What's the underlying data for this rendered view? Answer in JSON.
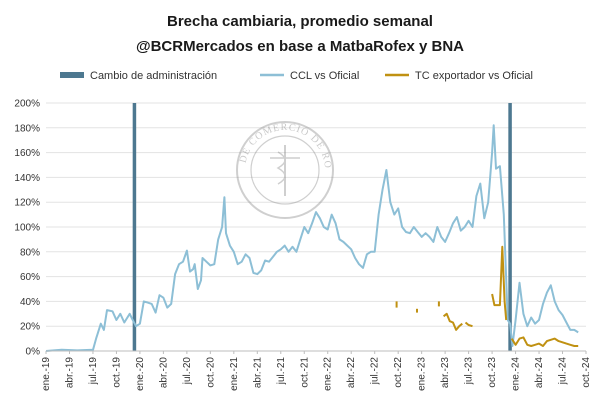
{
  "chart_data": {
    "type": "line",
    "title": "Brecha cambiaria, promedio semanal",
    "subtitle": "@BCRMercados en base a MatbaRofex y BNA",
    "xlabel": "",
    "ylabel": "",
    "ylim": [
      0,
      200
    ],
    "yticks": [
      0,
      20,
      40,
      60,
      80,
      100,
      120,
      140,
      160,
      180,
      200
    ],
    "ytick_labels": [
      "0%",
      "20%",
      "40%",
      "60%",
      "80%",
      "100%",
      "120%",
      "140%",
      "160%",
      "180%",
      "200%"
    ],
    "xticks": [
      "ene.-19",
      "abr.-19",
      "jul.-19",
      "oct.-19",
      "ene.-20",
      "abr.-20",
      "jul.-20",
      "oct.-20",
      "ene.-21",
      "abr.-21",
      "jul.-21",
      "oct.-21",
      "ene.-22",
      "abr.-22",
      "jul.-22",
      "oct.-22",
      "ene.-23",
      "abr.-23",
      "jul.-23",
      "oct.-23",
      "ene.-24",
      "abr.-24",
      "jul.-24",
      "oct.-24"
    ],
    "x_unit": "months since ene.-19",
    "grid": true,
    "legend_position": "top",
    "colors": {
      "ccl": "#8dbfd6",
      "exportador": "#c09112",
      "cambio": "#4d7890"
    },
    "legend": [
      {
        "label": "Cambio de administración",
        "key": "cambio",
        "style": "bar"
      },
      {
        "label": "CCL vs Oficial",
        "key": "ccl",
        "style": "line"
      },
      {
        "label": "TC exportador vs Oficial",
        "key": "exportador",
        "style": "line"
      }
    ],
    "vertical_markers": [
      {
        "name": "Cambio de administración",
        "x": 11.3
      },
      {
        "name": "Cambio de administración",
        "x": 59.3
      }
    ],
    "series": [
      {
        "name": "CCL vs Oficial",
        "key": "ccl",
        "points": [
          [
            0,
            0
          ],
          [
            2,
            1
          ],
          [
            4,
            0.5
          ],
          [
            6,
            1
          ],
          [
            6.4,
            10
          ],
          [
            6.6,
            14
          ],
          [
            7,
            22
          ],
          [
            7.4,
            17
          ],
          [
            7.8,
            33
          ],
          [
            8.5,
            32
          ],
          [
            9,
            25
          ],
          [
            9.5,
            30
          ],
          [
            10,
            23
          ],
          [
            10.7,
            30
          ],
          [
            11,
            26
          ],
          [
            11.5,
            20
          ],
          [
            12,
            22
          ],
          [
            12.5,
            40
          ],
          [
            13,
            39
          ],
          [
            13.5,
            38
          ],
          [
            14,
            31
          ],
          [
            14.5,
            45
          ],
          [
            15,
            43
          ],
          [
            15.5,
            35
          ],
          [
            16,
            38
          ],
          [
            16.5,
            62
          ],
          [
            17,
            70
          ],
          [
            17.5,
            72
          ],
          [
            18,
            81
          ],
          [
            18.4,
            64
          ],
          [
            18.8,
            66
          ],
          [
            19,
            70
          ],
          [
            19.4,
            50
          ],
          [
            19.8,
            57
          ],
          [
            20,
            75
          ],
          [
            20.5,
            72
          ],
          [
            21,
            69
          ],
          [
            21.5,
            70
          ],
          [
            22,
            90
          ],
          [
            22.5,
            100
          ],
          [
            22.8,
            124
          ],
          [
            23,
            95
          ],
          [
            23.5,
            85
          ],
          [
            24,
            80
          ],
          [
            24.5,
            70
          ],
          [
            25,
            72
          ],
          [
            25.5,
            78
          ],
          [
            26,
            75
          ],
          [
            26.5,
            63
          ],
          [
            27,
            62
          ],
          [
            27.5,
            65
          ],
          [
            28,
            73
          ],
          [
            28.5,
            72
          ],
          [
            29,
            76
          ],
          [
            29.5,
            80
          ],
          [
            30,
            82
          ],
          [
            30.5,
            85
          ],
          [
            31,
            80
          ],
          [
            31.5,
            84
          ],
          [
            32,
            80
          ],
          [
            32.5,
            90
          ],
          [
            33,
            100
          ],
          [
            33.5,
            95
          ],
          [
            34,
            103
          ],
          [
            34.5,
            112
          ],
          [
            35,
            107
          ],
          [
            35.5,
            100
          ],
          [
            36,
            98
          ],
          [
            36.5,
            110
          ],
          [
            37,
            103
          ],
          [
            37.5,
            90
          ],
          [
            38,
            88
          ],
          [
            38.5,
            85
          ],
          [
            39,
            82
          ],
          [
            39.5,
            75
          ],
          [
            40,
            70
          ],
          [
            40.5,
            67
          ],
          [
            41,
            78
          ],
          [
            41.5,
            80
          ],
          [
            42,
            80
          ],
          [
            42.5,
            110
          ],
          [
            43,
            130
          ],
          [
            43.5,
            146
          ],
          [
            44,
            120
          ],
          [
            44.5,
            110
          ],
          [
            45,
            115
          ],
          [
            45.5,
            100
          ],
          [
            46,
            96
          ],
          [
            46.5,
            95
          ],
          [
            47,
            100
          ],
          [
            47.5,
            96
          ],
          [
            48,
            92
          ],
          [
            48.5,
            95
          ],
          [
            49,
            92
          ],
          [
            49.5,
            88
          ],
          [
            50,
            100
          ],
          [
            50.5,
            92
          ],
          [
            51,
            88
          ],
          [
            51.5,
            95
          ],
          [
            52,
            103
          ],
          [
            52.5,
            108
          ],
          [
            53,
            97
          ],
          [
            53.5,
            100
          ],
          [
            54,
            105
          ],
          [
            54.5,
            100
          ],
          [
            55,
            125
          ],
          [
            55.5,
            135
          ],
          [
            56,
            107
          ],
          [
            56.5,
            120
          ],
          [
            57,
            160
          ],
          [
            57.2,
            182
          ],
          [
            57.5,
            147
          ],
          [
            58,
            149
          ],
          [
            58.5,
            110
          ],
          [
            59,
            25
          ],
          [
            59.3,
            22
          ],
          [
            59.6,
            4
          ],
          [
            60,
            25
          ],
          [
            60.5,
            55
          ],
          [
            61,
            30
          ],
          [
            61.5,
            20
          ],
          [
            62,
            27
          ],
          [
            62.5,
            22
          ],
          [
            63,
            25
          ],
          [
            63.5,
            38
          ],
          [
            64,
            47
          ],
          [
            64.5,
            53
          ],
          [
            65,
            40
          ],
          [
            65.5,
            33
          ],
          [
            66,
            29
          ],
          [
            66.5,
            23
          ],
          [
            67,
            17
          ],
          [
            67.5,
            17
          ],
          [
            68,
            15
          ]
        ]
      },
      {
        "name": "TC exportador vs Oficial",
        "key": "exportador",
        "segments": [
          [
            [
              44.8,
              40
            ],
            [
              44.8,
              35
            ]
          ],
          [
            [
              47.4,
              34
            ],
            [
              47.4,
              31
            ]
          ],
          [
            [
              50.2,
              40
            ],
            [
              50.2,
              36
            ]
          ],
          [
            [
              50.8,
              28
            ],
            [
              51.2,
              30
            ],
            [
              51.6,
              24
            ],
            [
              52,
              23
            ],
            [
              52.4,
              17
            ],
            [
              52.8,
              20
            ],
            [
              53.2,
              22
            ]
          ],
          [
            [
              53.6,
              23
            ],
            [
              54,
              21
            ],
            [
              54.5,
              20
            ]
          ],
          [
            [
              57,
              46
            ],
            [
              57.3,
              37
            ],
            [
              58,
              37
            ],
            [
              58.3,
              84
            ],
            [
              58.6,
              40
            ],
            [
              58.8,
              25
            ]
          ],
          [
            [
              59.5,
              10
            ],
            [
              60,
              5
            ],
            [
              60.5,
              10
            ],
            [
              61,
              11
            ],
            [
              61.5,
              5
            ],
            [
              62,
              4
            ],
            [
              62.5,
              5
            ],
            [
              63,
              6
            ],
            [
              63.5,
              4
            ],
            [
              64,
              8
            ],
            [
              64.5,
              9
            ],
            [
              65,
              10
            ],
            [
              65.5,
              8
            ],
            [
              66,
              7
            ],
            [
              66.5,
              6
            ],
            [
              67,
              5
            ],
            [
              67.5,
              4
            ],
            [
              68,
              4
            ]
          ]
        ]
      }
    ]
  },
  "watermark": {
    "text": "BOLSA DE COMERCIO DE ROSARIO"
  }
}
